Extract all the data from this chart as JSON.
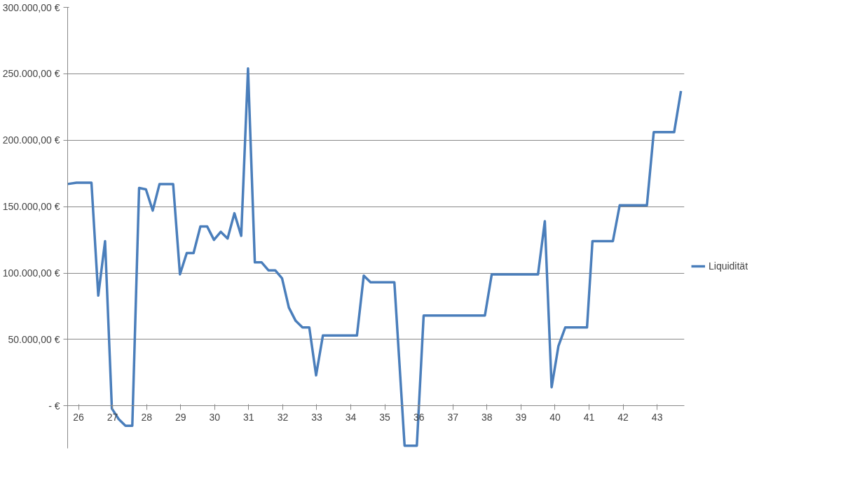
{
  "chart_data": {
    "type": "line",
    "legend": "right",
    "grid": "y",
    "marker": "none",
    "line_style": "solid",
    "xlim": [
      25.68,
      43.8
    ],
    "xticks": [
      26,
      27,
      28,
      29,
      30,
      31,
      32,
      33,
      34,
      35,
      36,
      37,
      38,
      39,
      40,
      41,
      42,
      43
    ],
    "ylim": [
      -32000,
      300000
    ],
    "yticks": [
      {
        "value": 0,
        "label": "- €"
      },
      {
        "value": 50000,
        "label": "50.000,00 €"
      },
      {
        "value": 100000,
        "label": "100.000,00 €"
      },
      {
        "value": 150000,
        "label": "150.000,00 €"
      },
      {
        "value": 200000,
        "label": "200.000,00 €"
      },
      {
        "value": 250000,
        "label": "250.000,00 €"
      },
      {
        "value": 300000,
        "label": "300.000,00 €"
      }
    ],
    "series": [
      {
        "name": "Liquidität",
        "color": "#4a7ebb",
        "x": [
          25.68,
          25.94,
          26.38,
          26.58,
          26.78,
          26.98,
          27.18,
          27.38,
          27.58,
          27.78,
          27.98,
          28.18,
          28.38,
          28.78,
          28.98,
          29.18,
          29.38,
          29.58,
          29.78,
          29.98,
          30.18,
          30.38,
          30.58,
          30.78,
          30.98,
          31.18,
          31.38,
          31.58,
          31.78,
          31.98,
          32.18,
          32.38,
          32.58,
          32.78,
          32.98,
          33.18,
          34.18,
          34.38,
          34.58,
          35.28,
          35.58,
          35.94,
          36.14,
          37.94,
          38.14,
          39.5,
          39.7,
          39.9,
          40.1,
          40.3,
          40.94,
          41.1,
          41.7,
          41.9,
          42.7,
          42.9,
          43.5,
          43.7
        ],
        "values": [
          167000,
          168000,
          168000,
          83000,
          124000,
          -2000,
          -10000,
          -15000,
          -15000,
          164000,
          163000,
          147000,
          167000,
          167000,
          99000,
          115000,
          115000,
          135000,
          135000,
          125000,
          131000,
          126000,
          145000,
          128000,
          254000,
          108000,
          108000,
          102000,
          102000,
          96000,
          74000,
          64000,
          59000,
          59000,
          23000,
          53000,
          53000,
          98000,
          93000,
          93000,
          -30000,
          -30000,
          68000,
          68000,
          99000,
          99000,
          139000,
          14000,
          45000,
          59000,
          59000,
          124000,
          124000,
          151000,
          151000,
          206000,
          206000,
          237000
        ]
      }
    ]
  }
}
